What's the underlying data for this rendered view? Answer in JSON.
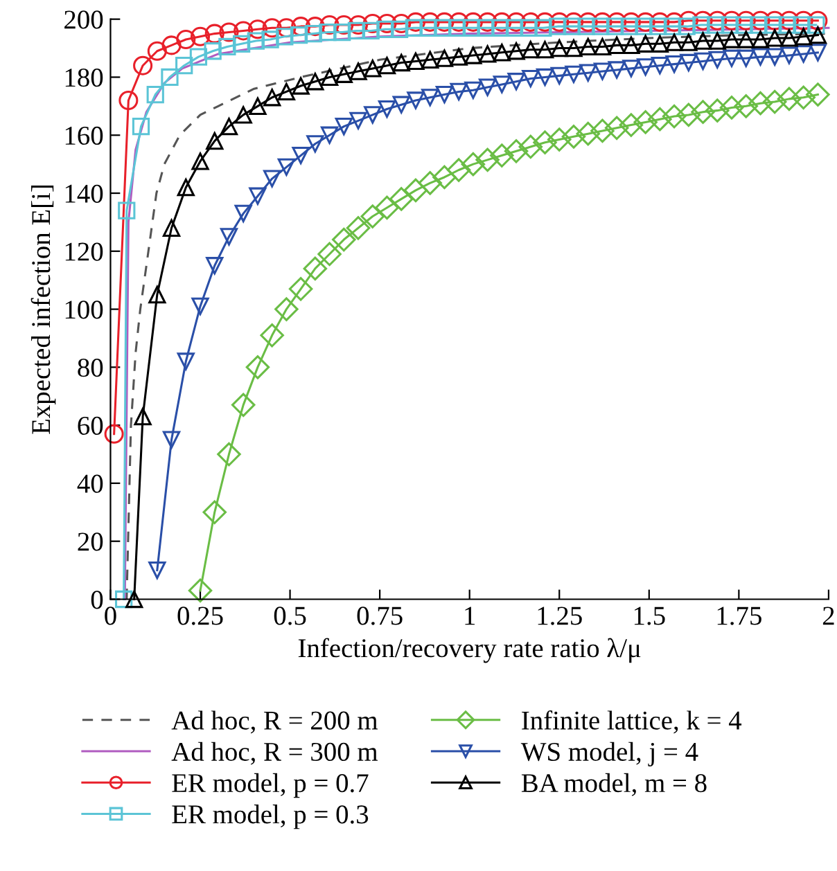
{
  "chart_data": {
    "type": "line",
    "xlabel": "Infection/recovery rate ratio λ/μ",
    "ylabel": "Expected infection E[i]",
    "xlim": [
      0,
      2
    ],
    "xticks": [
      0,
      0.25,
      0.5,
      0.75,
      1,
      1.25,
      1.5,
      1.75,
      2
    ],
    "ylim": [
      0,
      200
    ],
    "yticks": [
      0,
      20,
      40,
      60,
      80,
      100,
      120,
      140,
      160,
      180,
      200
    ],
    "grid": false,
    "legend": "bottom",
    "series": [
      {
        "name": "Ad hoc, R = 200 m",
        "color": "#555555",
        "line_style": "dashed",
        "marker": "none",
        "x": [
          0.045,
          0.057,
          0.07,
          0.083,
          0.1,
          0.128,
          0.15,
          0.193,
          0.25,
          0.3,
          0.4,
          0.53,
          0.75,
          1,
          1.25,
          1.5,
          1.75,
          2
        ],
        "values": [
          0,
          60,
          85,
          100,
          115,
          140,
          150,
          160,
          167,
          170,
          176,
          180,
          186,
          190,
          192,
          193.5,
          194.5,
          195
        ]
      },
      {
        "name": "Ad hoc, R = 300 m",
        "color": "#b05cc0",
        "line_style": "solid",
        "marker": "none",
        "x": [
          0.04,
          0.05,
          0.07,
          0.1,
          0.15,
          0.2,
          0.3,
          0.4,
          0.5,
          0.75,
          1,
          1.5,
          2
        ],
        "values": [
          0,
          130,
          155,
          168,
          178,
          183,
          188,
          190,
          192,
          194,
          195,
          196,
          197
        ]
      },
      {
        "name": "ER model, p = 0.7",
        "color": "#e8202a",
        "line_style": "solid",
        "marker": "circle",
        "x": [
          0.01,
          0.05,
          0.09,
          0.13,
          0.17,
          0.21,
          0.25,
          0.29,
          0.33,
          0.37,
          0.41,
          0.45,
          0.49,
          0.53,
          0.57,
          0.61,
          0.65,
          0.69,
          0.73,
          0.77,
          0.81,
          0.85,
          0.89,
          0.93,
          0.97,
          1.01,
          1.05,
          1.09,
          1.13,
          1.17,
          1.21,
          1.25,
          1.29,
          1.33,
          1.37,
          1.41,
          1.45,
          1.49,
          1.53,
          1.57,
          1.61,
          1.65,
          1.69,
          1.73,
          1.77,
          1.81,
          1.85,
          1.89,
          1.93,
          1.97
        ],
        "values": [
          57,
          172,
          184,
          189,
          191,
          193,
          194,
          195,
          195.5,
          196,
          196.5,
          197,
          197,
          197.5,
          197.5,
          198,
          198,
          198,
          198.5,
          198.5,
          198.5,
          199,
          199,
          199,
          199,
          199,
          199,
          199,
          199,
          199,
          199,
          199,
          199,
          199,
          199,
          199,
          199,
          199,
          199,
          199,
          199.5,
          199.5,
          199.5,
          199.5,
          199.5,
          199.5,
          199.5,
          199.5,
          199.5,
          199.5
        ]
      },
      {
        "name": "ER model, p = 0.3",
        "color": "#5bc4d6",
        "line_style": "solid",
        "marker": "square",
        "x": [
          0.037,
          0.045,
          0.085,
          0.125,
          0.165,
          0.205,
          0.245,
          0.285,
          0.325,
          0.365,
          0.405,
          0.445,
          0.485,
          0.525,
          0.565,
          0.605,
          0.645,
          0.685,
          0.725,
          0.765,
          0.805,
          0.845,
          0.885,
          0.925,
          0.965,
          1.005,
          1.045,
          1.085,
          1.125,
          1.165,
          1.205,
          1.245,
          1.285,
          1.325,
          1.365,
          1.405,
          1.445,
          1.485,
          1.525,
          1.565,
          1.605,
          1.645,
          1.685,
          1.725,
          1.765,
          1.805,
          1.845,
          1.885,
          1.925,
          1.965
        ],
        "values": [
          0,
          134,
          163,
          174,
          180,
          184,
          187,
          189,
          190.5,
          191.5,
          192.5,
          193,
          194,
          194.5,
          195,
          195.5,
          195.5,
          196,
          196,
          196.5,
          196.5,
          197,
          197,
          197,
          197,
          197,
          197,
          197,
          197,
          197,
          197,
          197.5,
          197.5,
          197.5,
          197.5,
          197.5,
          197.5,
          197.5,
          197.5,
          197.5,
          197.5,
          198,
          198,
          198,
          198,
          198,
          198,
          198,
          198,
          198
        ]
      },
      {
        "name": "Infinite lattice, k = 4",
        "color": "#6abd45",
        "line_style": "solid",
        "marker": "diamond",
        "x": [
          0.25,
          0.29,
          0.33,
          0.37,
          0.41,
          0.45,
          0.49,
          0.53,
          0.57,
          0.61,
          0.65,
          0.69,
          0.73,
          0.77,
          0.81,
          0.85,
          0.89,
          0.93,
          0.97,
          1.01,
          1.05,
          1.09,
          1.13,
          1.17,
          1.21,
          1.25,
          1.29,
          1.33,
          1.37,
          1.41,
          1.45,
          1.49,
          1.53,
          1.57,
          1.61,
          1.65,
          1.69,
          1.73,
          1.77,
          1.81,
          1.85,
          1.89,
          1.93,
          1.97
        ],
        "values": [
          3,
          30,
          50,
          67,
          80,
          91,
          100,
          107,
          114,
          119,
          124,
          128,
          132,
          135,
          138,
          141,
          143.5,
          145.5,
          148,
          150,
          151.5,
          153,
          154.5,
          156,
          157.5,
          158.5,
          159.5,
          160.5,
          161.5,
          162.5,
          163.5,
          164.5,
          165.5,
          166.5,
          167,
          168,
          168.5,
          169.5,
          170,
          171,
          171.5,
          172.5,
          173,
          174
        ]
      },
      {
        "name": "WS model, j = 4",
        "color": "#2a4fa8",
        "line_style": "solid",
        "marker": "triangle_down",
        "x": [
          0.13,
          0.17,
          0.21,
          0.25,
          0.29,
          0.33,
          0.37,
          0.41,
          0.45,
          0.49,
          0.53,
          0.57,
          0.61,
          0.65,
          0.69,
          0.73,
          0.77,
          0.81,
          0.85,
          0.89,
          0.93,
          0.97,
          1.01,
          1.05,
          1.09,
          1.13,
          1.17,
          1.21,
          1.25,
          1.29,
          1.33,
          1.37,
          1.41,
          1.45,
          1.49,
          1.53,
          1.57,
          1.61,
          1.65,
          1.69,
          1.73,
          1.77,
          1.81,
          1.85,
          1.89,
          1.93,
          1.97
        ],
        "values": [
          10,
          55,
          82,
          101,
          115,
          125,
          133,
          139,
          145,
          149,
          153,
          157,
          160,
          163,
          165,
          167,
          169,
          170.5,
          172,
          173,
          174,
          175,
          175.5,
          176.5,
          177.5,
          178.5,
          179.5,
          180,
          180.5,
          181,
          181.5,
          182,
          182.5,
          183,
          183.5,
          184,
          184.5,
          185,
          185.5,
          186,
          186.5,
          186.5,
          187,
          187,
          187.5,
          188,
          188.5
        ]
      },
      {
        "name": "BA model, m = 8",
        "color": "#000000",
        "line_style": "solid",
        "marker": "triangle",
        "x": [
          0.066,
          0.09,
          0.13,
          0.17,
          0.21,
          0.25,
          0.29,
          0.33,
          0.37,
          0.41,
          0.45,
          0.49,
          0.53,
          0.57,
          0.61,
          0.65,
          0.69,
          0.73,
          0.77,
          0.81,
          0.85,
          0.89,
          0.93,
          0.97,
          1.01,
          1.05,
          1.09,
          1.13,
          1.17,
          1.21,
          1.25,
          1.29,
          1.33,
          1.37,
          1.41,
          1.45,
          1.49,
          1.53,
          1.57,
          1.61,
          1.65,
          1.69,
          1.73,
          1.77,
          1.81,
          1.85,
          1.89,
          1.93,
          1.97
        ],
        "values": [
          0,
          63,
          105,
          128,
          142,
          151,
          158,
          163,
          167,
          170,
          173,
          175,
          177,
          178.5,
          180,
          181,
          182,
          183,
          184,
          185,
          185.5,
          186,
          186.5,
          187,
          187.5,
          188,
          188.5,
          189,
          189.5,
          189.5,
          190,
          190,
          190.5,
          190.5,
          191,
          191,
          191.5,
          191.5,
          192,
          192,
          192.5,
          192.5,
          193,
          193,
          193,
          193.5,
          193.5,
          194,
          194.5
        ]
      }
    ]
  }
}
